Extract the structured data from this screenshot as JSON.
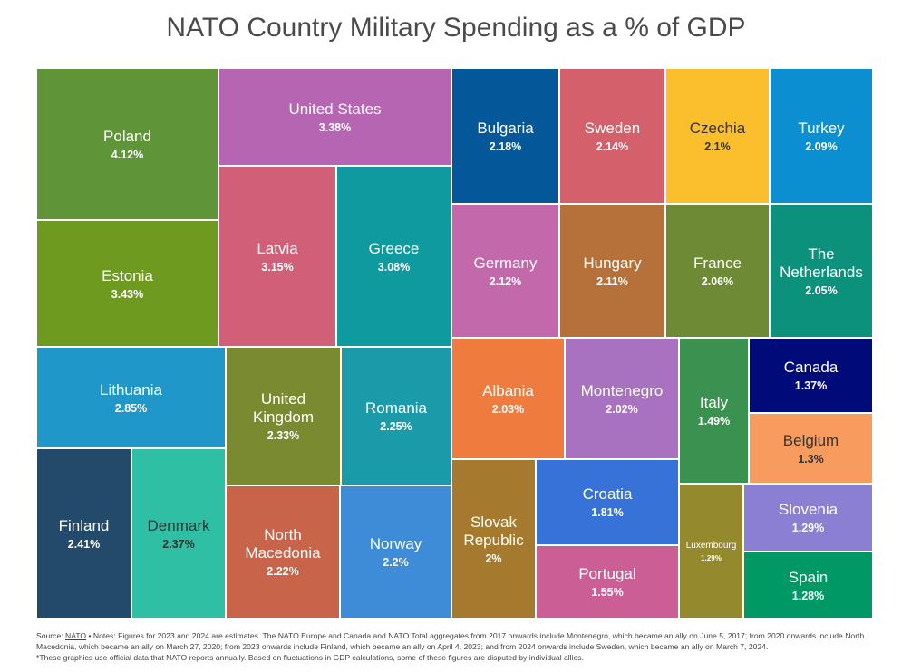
{
  "chart_data": {
    "type": "treemap",
    "title": "NATO Country Military Spending as a % of GDP",
    "items": [
      {
        "name": "Poland",
        "label": "4.12%",
        "value": 4.12,
        "color": "#5f9438"
      },
      {
        "name": "Estonia",
        "label": "3.43%",
        "value": 3.43,
        "color": "#6e9a1f"
      },
      {
        "name": "United States",
        "label": "3.38%",
        "value": 3.38,
        "color": "#b665b3"
      },
      {
        "name": "Latvia",
        "label": "3.15%",
        "value": 3.15,
        "color": "#d15f78"
      },
      {
        "name": "Greece",
        "label": "3.08%",
        "value": 3.08,
        "color": "#0f9aa0"
      },
      {
        "name": "Lithuania",
        "label": "2.85%",
        "value": 2.85,
        "color": "#1f98c9"
      },
      {
        "name": "Finland",
        "label": "2.41%",
        "value": 2.41,
        "color": "#234a6a"
      },
      {
        "name": "Denmark",
        "label": "2.37%",
        "value": 2.37,
        "color": "#2ebfa5"
      },
      {
        "name": "United Kingdom",
        "label": "2.33%",
        "value": 2.33,
        "color": "#7a8a30"
      },
      {
        "name": "Romania",
        "label": "2.25%",
        "value": 2.25,
        "color": "#1b9aaa"
      },
      {
        "name": "North Macedonia",
        "label": "2.22%",
        "value": 2.22,
        "color": "#c8644a"
      },
      {
        "name": "Norway",
        "label": "2.2%",
        "value": 2.2,
        "color": "#3e8bd8"
      },
      {
        "name": "Bulgaria",
        "label": "2.18%",
        "value": 2.18,
        "color": "#04589a"
      },
      {
        "name": "Sweden",
        "label": "2.14%",
        "value": 2.14,
        "color": "#d3606a"
      },
      {
        "name": "Czechia",
        "label": "2.1%",
        "value": 2.1,
        "color": "#fbbf2e"
      },
      {
        "name": "Turkey",
        "label": "2.09%",
        "value": 2.09,
        "color": "#0b8fd1"
      },
      {
        "name": "Germany",
        "label": "2.12%",
        "value": 2.12,
        "color": "#c468ac"
      },
      {
        "name": "Hungary",
        "label": "2.11%",
        "value": 2.11,
        "color": "#b6713a"
      },
      {
        "name": "France",
        "label": "2.06%",
        "value": 2.06,
        "color": "#6e8a35"
      },
      {
        "name": "The Netherlands",
        "label": "2.05%",
        "value": 2.05,
        "color": "#0c927c"
      },
      {
        "name": "Albania",
        "label": "2.03%",
        "value": 2.03,
        "color": "#f07b3e"
      },
      {
        "name": "Montenegro",
        "label": "2.02%",
        "value": 2.02,
        "color": "#a872c1"
      },
      {
        "name": "Slovak Republic",
        "label": "2%",
        "value": 2.0,
        "color": "#a57a2e"
      },
      {
        "name": "Croatia",
        "label": "1.81%",
        "value": 1.81,
        "color": "#3672d8"
      },
      {
        "name": "Portugal",
        "label": "1.55%",
        "value": 1.55,
        "color": "#cc5e96"
      },
      {
        "name": "Italy",
        "label": "1.49%",
        "value": 1.49,
        "color": "#3a9150"
      },
      {
        "name": "Canada",
        "label": "1.37%",
        "value": 1.37,
        "color": "#000b7a"
      },
      {
        "name": "Belgium",
        "label": "1.3%",
        "value": 1.3,
        "color": "#f79b5e"
      },
      {
        "name": "Luxembourg",
        "label": "1.29%",
        "value": 1.29,
        "color": "#948a2d"
      },
      {
        "name": "Slovenia",
        "label": "1.29%",
        "value": 1.29,
        "color": "#8b7fd3"
      },
      {
        "name": "Spain",
        "label": "1.28%",
        "value": 1.28,
        "color": "#009966"
      }
    ]
  },
  "footnote": {
    "source_prefix": "Source: ",
    "source_link": "NATO",
    "text": " • Notes: Figures for 2023 and 2024 are estimates. The NATO Europe and Canada and NATO Total aggregates from 2017 onwards include Montenegro, which became an ally on June 5, 2017; from 2020 onwards include North Macedonia, which became an ally on March 27, 2020; from 2023 onwards include Finland, which became an ally on April 4, 2023; and from 2024 onwards include Sweden, which became an ally on March 7, 2024.",
    "text2": "*These graphics use official data that NATO reports annually. Based on fluctuations in GDP calculations, some of these figures are disputed by individual allies."
  }
}
